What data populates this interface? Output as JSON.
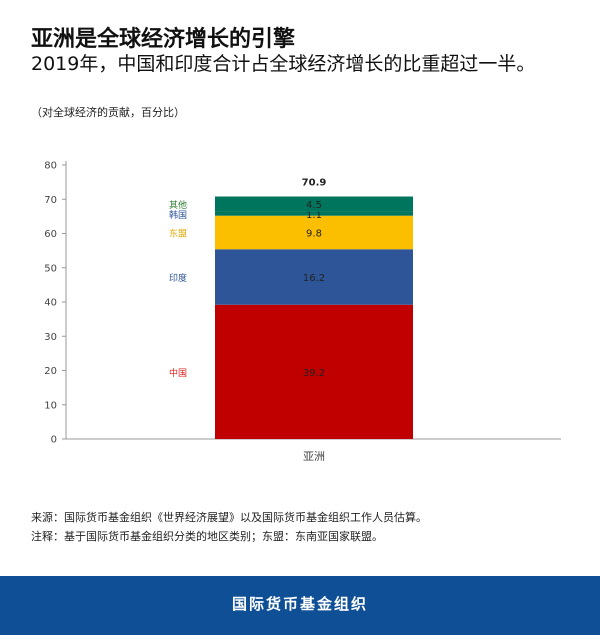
{
  "header": {
    "title": "亚洲是全球经济增长的引擎",
    "subtitle": "2019年，中国和印度合计占全球经济增长的比重超过一半。",
    "unit_note": "（对全球经济的贡献，百分比）"
  },
  "chart_data": {
    "type": "bar",
    "stacked": true,
    "categories": [
      "亚洲"
    ],
    "series": [
      {
        "name": "中国",
        "values": [
          39.2
        ],
        "color": "#c00000"
      },
      {
        "name": "印度",
        "values": [
          16.2
        ],
        "color": "#2e5597"
      },
      {
        "name": "东盟",
        "values": [
          9.8
        ],
        "color": "#fcbf00"
      },
      {
        "name": "韩国",
        "values": [
          1.1
        ],
        "color": "#00755e"
      },
      {
        "name": "其他",
        "values": [
          4.5
        ],
        "color": "#00755e"
      }
    ],
    "total_label": "70.9",
    "yticks": [
      "0",
      "10",
      "20",
      "30",
      "40",
      "50",
      "60",
      "70",
      "80"
    ],
    "ylim": [
      0,
      80
    ],
    "legend_position": "left of bar",
    "label_colors": {
      "中国": "#e02020",
      "印度": "#2e5597",
      "东盟": "#e0a800",
      "韩国": "#2e5597",
      "其他": "#2e7d32"
    },
    "grid": false
  },
  "footnotes": {
    "source": "来源：国际货币基金组织《世界经济展望》以及国际货币基金组织工作人员估算。",
    "note": "注释：基于国际货币基金组织分类的地区类别；东盟：东南亚国家联盟。"
  },
  "footer": {
    "org_name": "国际货币基金组织"
  }
}
